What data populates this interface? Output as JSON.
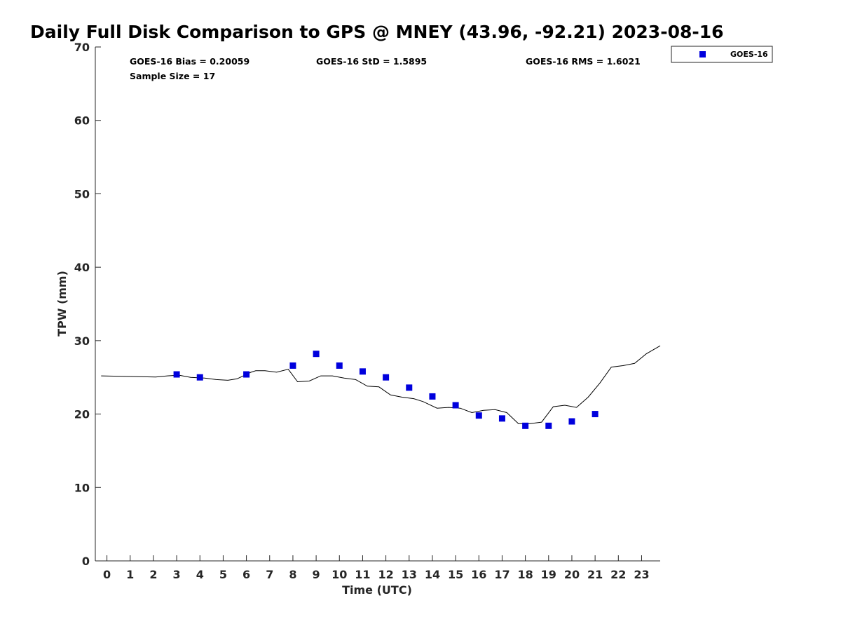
{
  "chart_data": {
    "type": "scatter",
    "title": "Daily Full Disk Comparison to GPS @ MNEY (43.96, -92.21) 2023-08-16",
    "xlabel": "Time (UTC)",
    "ylabel": "TPW (mm)",
    "xlim": [
      -0.5,
      23.8
    ],
    "ylim": [
      0,
      70
    ],
    "x_ticks": [
      0,
      1,
      2,
      3,
      4,
      5,
      6,
      7,
      8,
      9,
      10,
      11,
      12,
      13,
      14,
      15,
      16,
      17,
      18,
      19,
      20,
      21,
      22,
      23
    ],
    "y_ticks": [
      0,
      10,
      20,
      30,
      40,
      50,
      60,
      70
    ],
    "grid": false,
    "stats": {
      "bias": "GOES-16 Bias = 0.20059",
      "std": "GOES-16 StD = 1.5895",
      "rms": "GOES-16 RMS = 1.6021",
      "sample_size": "Sample Size = 17"
    },
    "legend": {
      "placement": "top-right",
      "entries": [
        "GOES-16"
      ]
    },
    "series": [
      {
        "name": "GOES-16",
        "kind": "scatter",
        "marker": "square",
        "color": "#0000dd",
        "x": [
          3,
          4,
          6,
          8,
          9,
          10,
          11,
          12,
          13,
          14,
          15,
          16,
          17,
          18,
          19,
          20,
          21
        ],
        "y": [
          25.4,
          25.0,
          25.4,
          26.6,
          28.2,
          26.6,
          25.8,
          25.0,
          23.6,
          22.4,
          21.2,
          19.8,
          19.4,
          18.4,
          18.4,
          19.0,
          20.0
        ]
      },
      {
        "kind": "line",
        "color": "#000000",
        "x": [
          -0.25,
          2.1,
          2.6,
          3.1,
          3.6,
          4.2,
          4.7,
          5.2,
          5.6,
          6.2,
          6.4,
          6.8,
          7.3,
          7.8,
          8.2,
          8.7,
          9.2,
          9.7,
          10.2,
          10.7,
          11.2,
          11.7,
          12.2,
          12.7,
          13.2,
          13.6,
          14.2,
          14.7,
          15.2,
          15.7,
          16.2,
          16.7,
          17.2,
          17.7,
          18.2,
          18.7,
          19.2,
          19.7,
          20.2,
          20.7,
          21.2,
          21.7,
          22.2,
          22.7,
          23.2,
          23.8
        ],
        "y": [
          25.2,
          25.05,
          25.2,
          25.3,
          25.0,
          24.9,
          24.7,
          24.6,
          24.8,
          25.7,
          25.9,
          25.9,
          25.7,
          26.1,
          24.4,
          24.5,
          25.2,
          25.2,
          24.9,
          24.7,
          23.8,
          23.7,
          22.6,
          22.3,
          22.1,
          21.7,
          20.8,
          20.9,
          20.8,
          20.2,
          20.5,
          20.6,
          20.2,
          18.7,
          18.7,
          18.9,
          21.0,
          21.2,
          20.9,
          22.3,
          24.2,
          26.4,
          26.6,
          26.9,
          28.2,
          29.3
        ]
      }
    ]
  }
}
